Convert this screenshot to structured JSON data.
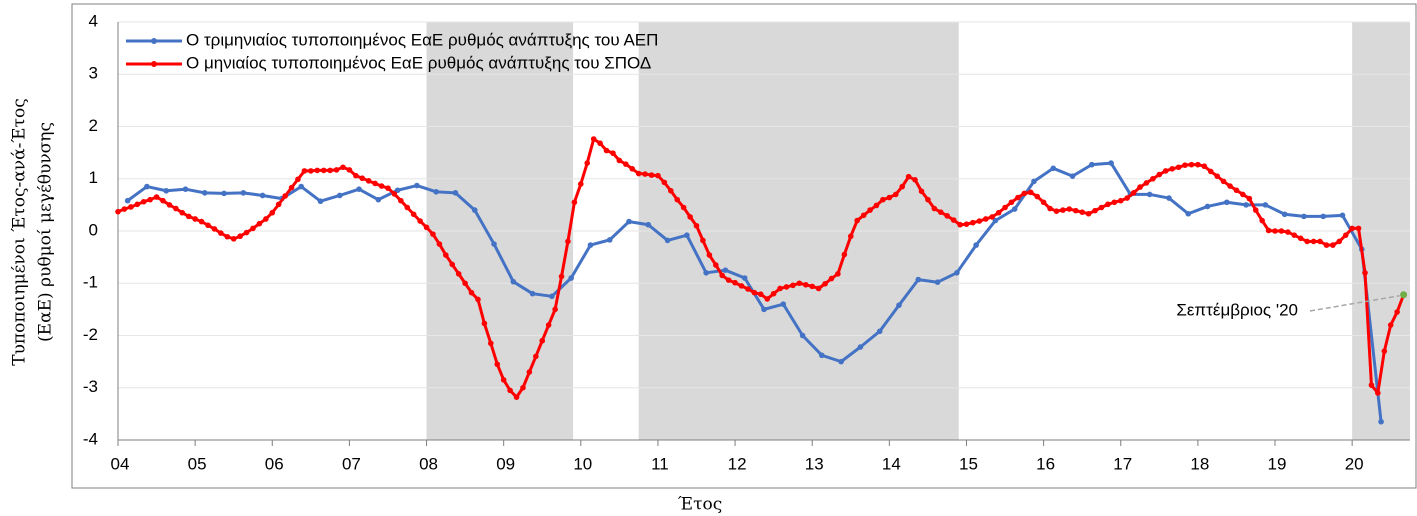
{
  "chart_data": {
    "type": "line",
    "ylabel": [
      "Τυποποιημένοι Έτος-ανά-Έτος",
      "(ΕαΕ) ρυθμοί μεγέθυνσης"
    ],
    "xlabel": "Έτος",
    "xlim": [
      2004,
      2020.75
    ],
    "ylim": [
      -4,
      4
    ],
    "yticks": [
      -4,
      -3,
      -2,
      -1,
      0,
      1,
      2,
      3,
      4
    ],
    "xticks": [
      {
        "value": 2004,
        "label": "04"
      },
      {
        "value": 2005,
        "label": "05"
      },
      {
        "value": 2006,
        "label": "06"
      },
      {
        "value": 2007,
        "label": "07"
      },
      {
        "value": 2008,
        "label": "08"
      },
      {
        "value": 2009,
        "label": "09"
      },
      {
        "value": 2010,
        "label": "10"
      },
      {
        "value": 2011,
        "label": "11"
      },
      {
        "value": 2012,
        "label": "12"
      },
      {
        "value": 2013,
        "label": "13"
      },
      {
        "value": 2014,
        "label": "14"
      },
      {
        "value": 2015,
        "label": "15"
      },
      {
        "value": 2016,
        "label": "16"
      },
      {
        "value": 2017,
        "label": "17"
      },
      {
        "value": 2018,
        "label": "18"
      },
      {
        "value": 2019,
        "label": "19"
      },
      {
        "value": 2020,
        "label": "20"
      }
    ],
    "grid": true,
    "legend": "top-left",
    "shaded_regions": [
      [
        2008,
        2009.9
      ],
      [
        2010.75,
        2014.9
      ],
      [
        2020,
        2020.75
      ]
    ],
    "shade_color": "#d9d9d9",
    "annotation": {
      "text": "Σεπτέμβριος '20",
      "highlight_color": "#70ad47"
    },
    "series": [
      {
        "name": "Ο τριμηνιαίος τυποποιημένος ΕαΕ ρυθμός ανάπτυξης του ΑΕΠ",
        "color": "#4472c4",
        "x": [
          2004.125,
          2004.375,
          2004.625,
          2004.875,
          2005.125,
          2005.375,
          2005.625,
          2005.875,
          2006.125,
          2006.375,
          2006.625,
          2006.875,
          2007.125,
          2007.375,
          2007.625,
          2007.875,
          2008.125,
          2008.375,
          2008.625,
          2008.875,
          2009.125,
          2009.375,
          2009.625,
          2009.875,
          2010.125,
          2010.375,
          2010.625,
          2010.875,
          2011.125,
          2011.375,
          2011.625,
          2011.875,
          2012.125,
          2012.375,
          2012.625,
          2012.875,
          2013.125,
          2013.375,
          2013.625,
          2013.875,
          2014.125,
          2014.375,
          2014.625,
          2014.875,
          2015.125,
          2015.375,
          2015.625,
          2015.875,
          2016.125,
          2016.375,
          2016.625,
          2016.875,
          2017.125,
          2017.375,
          2017.625,
          2017.875,
          2018.125,
          2018.375,
          2018.625,
          2018.875,
          2019.125,
          2019.375,
          2019.625,
          2019.875,
          2020.125,
          2020.375
        ],
        "values": [
          0.58,
          0.85,
          0.77,
          0.8,
          0.73,
          0.72,
          0.73,
          0.68,
          0.62,
          0.85,
          0.57,
          0.68,
          0.8,
          0.6,
          0.78,
          0.87,
          0.75,
          0.73,
          0.4,
          -0.25,
          -0.97,
          -1.2,
          -1.25,
          -0.9,
          -0.27,
          -0.17,
          0.18,
          0.12,
          -0.18,
          -0.08,
          -0.8,
          -0.75,
          -0.9,
          -1.5,
          -1.4,
          -2.0,
          -2.38,
          -2.5,
          -2.22,
          -1.92,
          -1.42,
          -0.93,
          -0.98,
          -0.8,
          -0.27,
          0.2,
          0.42,
          0.95,
          1.2,
          1.05,
          1.27,
          1.3,
          0.7,
          0.7,
          0.63,
          0.33,
          0.47,
          0.55,
          0.5,
          0.5,
          0.32,
          0.28,
          0.28,
          0.3,
          -0.35,
          -3.65
        ]
      },
      {
        "name": "Ο μηνιαίος τυποποιημένος ΕαΕ ρυθμός ανάπτυξης του ΣΠΟΔ",
        "color": "#ff0000",
        "x": [
          2004,
          2004.083,
          2004.167,
          2004.25,
          2004.333,
          2004.417,
          2004.5,
          2004.583,
          2004.667,
          2004.75,
          2004.833,
          2004.917,
          2005,
          2005.083,
          2005.167,
          2005.25,
          2005.333,
          2005.417,
          2005.5,
          2005.583,
          2005.667,
          2005.75,
          2005.833,
          2005.917,
          2006,
          2006.083,
          2006.167,
          2006.25,
          2006.333,
          2006.417,
          2006.5,
          2006.583,
          2006.667,
          2006.75,
          2006.833,
          2006.917,
          2007,
          2007.083,
          2007.167,
          2007.25,
          2007.333,
          2007.417,
          2007.5,
          2007.583,
          2007.667,
          2007.75,
          2007.833,
          2007.917,
          2008,
          2008.083,
          2008.167,
          2008.25,
          2008.333,
          2008.417,
          2008.5,
          2008.583,
          2008.667,
          2008.75,
          2008.833,
          2008.917,
          2009,
          2009.083,
          2009.167,
          2009.25,
          2009.333,
          2009.417,
          2009.5,
          2009.583,
          2009.667,
          2009.75,
          2009.833,
          2009.917,
          2010,
          2010.083,
          2010.167,
          2010.25,
          2010.333,
          2010.417,
          2010.5,
          2010.583,
          2010.667,
          2010.75,
          2010.833,
          2010.917,
          2011,
          2011.083,
          2011.167,
          2011.25,
          2011.333,
          2011.417,
          2011.5,
          2011.583,
          2011.667,
          2011.75,
          2011.833,
          2011.917,
          2012,
          2012.083,
          2012.167,
          2012.25,
          2012.333,
          2012.417,
          2012.5,
          2012.583,
          2012.667,
          2012.75,
          2012.833,
          2012.917,
          2013,
          2013.083,
          2013.167,
          2013.25,
          2013.333,
          2013.417,
          2013.5,
          2013.583,
          2013.667,
          2013.75,
          2013.833,
          2013.917,
          2014,
          2014.083,
          2014.167,
          2014.25,
          2014.333,
          2014.417,
          2014.5,
          2014.583,
          2014.667,
          2014.75,
          2014.833,
          2014.917,
          2015,
          2015.083,
          2015.167,
          2015.25,
          2015.333,
          2015.417,
          2015.5,
          2015.583,
          2015.667,
          2015.75,
          2015.833,
          2015.917,
          2016,
          2016.083,
          2016.167,
          2016.25,
          2016.333,
          2016.417,
          2016.5,
          2016.583,
          2016.667,
          2016.75,
          2016.833,
          2016.917,
          2017,
          2017.083,
          2017.167,
          2017.25,
          2017.333,
          2017.417,
          2017.5,
          2017.583,
          2017.667,
          2017.75,
          2017.833,
          2017.917,
          2018,
          2018.083,
          2018.167,
          2018.25,
          2018.333,
          2018.417,
          2018.5,
          2018.583,
          2018.667,
          2018.75,
          2018.833,
          2018.917,
          2019,
          2019.083,
          2019.167,
          2019.25,
          2019.333,
          2019.417,
          2019.5,
          2019.583,
          2019.667,
          2019.75,
          2019.833,
          2019.917,
          2020,
          2020.083,
          2020.167,
          2020.25,
          2020.333,
          2020.417,
          2020.5,
          2020.583,
          2020.667
        ],
        "values": [
          0.37,
          0.42,
          0.46,
          0.51,
          0.56,
          0.6,
          0.65,
          0.58,
          0.5,
          0.43,
          0.35,
          0.28,
          0.23,
          0.18,
          0.11,
          0.04,
          -0.04,
          -0.11,
          -0.15,
          -0.1,
          -0.03,
          0.05,
          0.14,
          0.23,
          0.35,
          0.51,
          0.67,
          0.83,
          0.99,
          1.15,
          1.15,
          1.16,
          1.16,
          1.16,
          1.17,
          1.22,
          1.17,
          1.06,
          1.01,
          0.96,
          0.91,
          0.86,
          0.82,
          0.71,
          0.58,
          0.45,
          0.32,
          0.19,
          0.07,
          -0.06,
          -0.25,
          -0.46,
          -0.64,
          -0.82,
          -1.0,
          -1.18,
          -1.31,
          -1.77,
          -2.15,
          -2.55,
          -2.85,
          -3.05,
          -3.18,
          -3.0,
          -2.7,
          -2.4,
          -2.1,
          -1.8,
          -1.5,
          -0.87,
          -0.2,
          0.55,
          0.9,
          1.3,
          1.76,
          1.68,
          1.54,
          1.49,
          1.35,
          1.28,
          1.19,
          1.1,
          1.09,
          1.07,
          1.06,
          0.93,
          0.77,
          0.6,
          0.45,
          0.27,
          0.1,
          -0.18,
          -0.46,
          -0.65,
          -0.85,
          -0.94,
          -0.99,
          -1.05,
          -1.11,
          -1.18,
          -1.21,
          -1.3,
          -1.2,
          -1.1,
          -1.07,
          -1.04,
          -1.0,
          -1.03,
          -1.06,
          -1.1,
          -1.01,
          -0.91,
          -0.82,
          -0.45,
          -0.1,
          0.2,
          0.3,
          0.4,
          0.49,
          0.6,
          0.64,
          0.7,
          0.85,
          1.04,
          0.98,
          0.76,
          0.6,
          0.43,
          0.36,
          0.29,
          0.21,
          0.12,
          0.13,
          0.16,
          0.19,
          0.23,
          0.27,
          0.35,
          0.45,
          0.55,
          0.64,
          0.72,
          0.74,
          0.66,
          0.55,
          0.43,
          0.38,
          0.4,
          0.42,
          0.39,
          0.36,
          0.33,
          0.39,
          0.45,
          0.51,
          0.55,
          0.58,
          0.63,
          0.73,
          0.84,
          0.92,
          1.0,
          1.08,
          1.15,
          1.19,
          1.22,
          1.26,
          1.27,
          1.27,
          1.24,
          1.14,
          1.05,
          0.95,
          0.86,
          0.78,
          0.7,
          0.62,
          0.4,
          0.2,
          0.01,
          0,
          0,
          -0.02,
          -0.08,
          -0.14,
          -0.2,
          -0.2,
          -0.2,
          -0.27,
          -0.27,
          -0.2,
          -0.08,
          0.05,
          0.05,
          -0.8,
          -2.95,
          -3.1,
          -2.3,
          -1.8,
          -1.55,
          -1.22
        ]
      }
    ]
  }
}
